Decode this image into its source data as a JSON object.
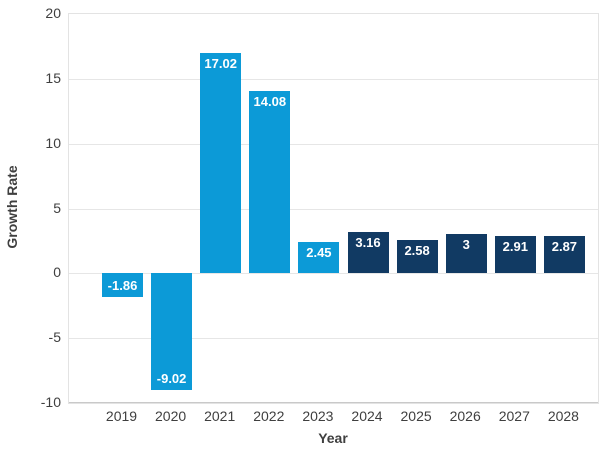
{
  "chart_data": {
    "type": "bar",
    "title": "",
    "xlabel": "Year",
    "ylabel": "Growth Rate",
    "categories": [
      "2019",
      "2020",
      "2021",
      "2022",
      "2023",
      "2024",
      "2025",
      "2026",
      "2027",
      "2028"
    ],
    "values": [
      -1.86,
      -9.02,
      17.02,
      14.08,
      2.45,
      3.16,
      2.58,
      3,
      2.91,
      2.87
    ],
    "value_labels": [
      "-1.86",
      "-9.02",
      "17.02",
      "14.08",
      "2.45",
      "3.16",
      "2.58",
      "3",
      "2.91",
      "2.87"
    ],
    "bar_colors": [
      "#0C9AD7",
      "#0C9AD7",
      "#0C9AD7",
      "#0C9AD7",
      "#0C9AD7",
      "#113A63",
      "#113A63",
      "#113A63",
      "#113A63",
      "#113A63"
    ],
    "ylim": [
      -10,
      20
    ],
    "yticks": [
      20,
      15,
      10,
      5,
      0,
      -5,
      -10
    ],
    "grid": true,
    "legend_position": "none",
    "colors": {
      "historical_bar": "#0C9AD7",
      "forecast_bar": "#113A63",
      "gridline": "#e6e6e6",
      "axis_line": "#c9c9c9",
      "tick_text": "#3f3f3f",
      "value_label_text": "#ffffff",
      "background": "#ffffff"
    }
  }
}
